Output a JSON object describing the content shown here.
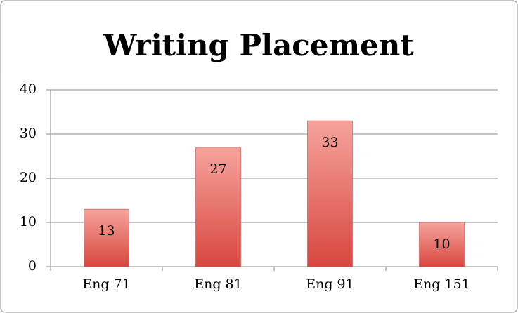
{
  "chart_data": {
    "type": "bar",
    "title": "Writing Placement",
    "categories": [
      "Eng 71",
      "Eng 81",
      "Eng 91",
      "Eng 151"
    ],
    "values": [
      13,
      27,
      33,
      10
    ],
    "color": "#e8645b",
    "ylim": [
      0,
      40
    ],
    "yticks": [
      0,
      10,
      20,
      30,
      40
    ],
    "grid": true
  }
}
